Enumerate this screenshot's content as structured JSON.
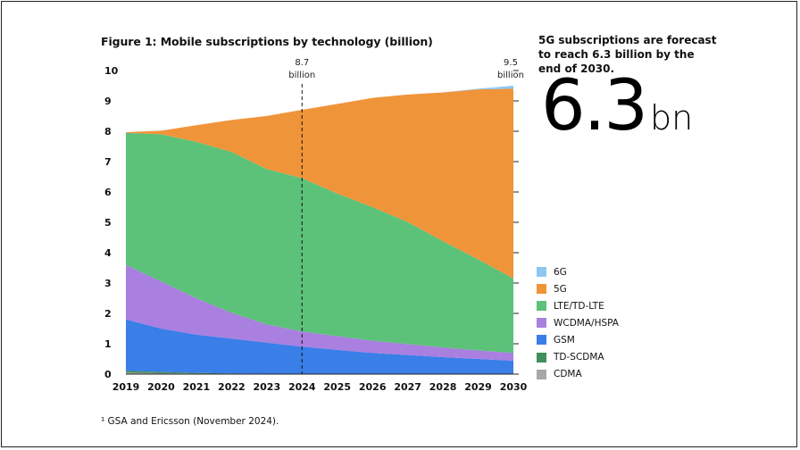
{
  "figure_title": "Figure 1: Mobile subscriptions by technology (billion)",
  "side_heading": "5G subscriptions are forecast to reach 6.3 billion by the end of 2030.",
  "big_number": {
    "value": "6.3",
    "unit": "bn"
  },
  "footnote": "¹ GSA and Ericsson (November 2024).",
  "chart_data": {
    "type": "area",
    "stacked": true,
    "title": "Figure 1: Mobile subscriptions by technology (billion)",
    "xlabel": "",
    "ylabel": "",
    "x": [
      2019,
      2020,
      2021,
      2022,
      2023,
      2024,
      2025,
      2026,
      2027,
      2028,
      2029,
      2030
    ],
    "ylim": [
      0,
      10
    ],
    "yticks": [
      0,
      1,
      2,
      3,
      4,
      5,
      6,
      7,
      8,
      9,
      10
    ],
    "grid": false,
    "legend_position": "right",
    "series": [
      {
        "name": "CDMA",
        "color": "#a8a8a8",
        "values": [
          0.05,
          0.03,
          0.02,
          0.01,
          0.01,
          0.005,
          0,
          0,
          0,
          0,
          0,
          0
        ]
      },
      {
        "name": "TD-SCDMA",
        "color": "#3f8f5a",
        "values": [
          0.06,
          0.04,
          0.02,
          0.01,
          0.005,
          0,
          0,
          0,
          0,
          0,
          0,
          0
        ]
      },
      {
        "name": "GSM",
        "color": "#3a7ee8",
        "values": [
          1.69,
          1.43,
          1.26,
          1.15,
          1.02,
          0.9,
          0.8,
          0.7,
          0.63,
          0.56,
          0.5,
          0.44
        ]
      },
      {
        "name": "WCDMA/HSPA",
        "color": "#a97fe0",
        "values": [
          1.8,
          1.55,
          1.2,
          0.85,
          0.6,
          0.5,
          0.45,
          0.4,
          0.36,
          0.32,
          0.28,
          0.26
        ]
      },
      {
        "name": "LTE/TD-LTE",
        "color": "#5cc27a",
        "values": [
          4.35,
          4.85,
          5.15,
          5.3,
          5.12,
          5.05,
          4.7,
          4.4,
          4.02,
          3.5,
          3.0,
          2.45
        ]
      },
      {
        "name": "5G",
        "color": "#f0943a",
        "values": [
          0.02,
          0.12,
          0.55,
          1.05,
          1.75,
          2.25,
          2.95,
          3.6,
          4.2,
          4.9,
          5.6,
          6.25
        ]
      },
      {
        "name": "6G",
        "color": "#8cc7f0",
        "values": [
          0,
          0,
          0,
          0,
          0,
          0,
          0,
          0,
          0,
          0,
          0.02,
          0.1
        ]
      }
    ],
    "legend_order": [
      "6G",
      "5G",
      "LTE/TD-LTE",
      "WCDMA/HSPA",
      "GSM",
      "TD-SCDMA",
      "CDMA"
    ],
    "annotations": [
      {
        "x": 2024,
        "line1": "8.7",
        "line2": "billion",
        "dashed_line": true
      },
      {
        "x": 2030,
        "line1": "9.5",
        "line2": "billion",
        "dashed_line": false
      }
    ]
  }
}
